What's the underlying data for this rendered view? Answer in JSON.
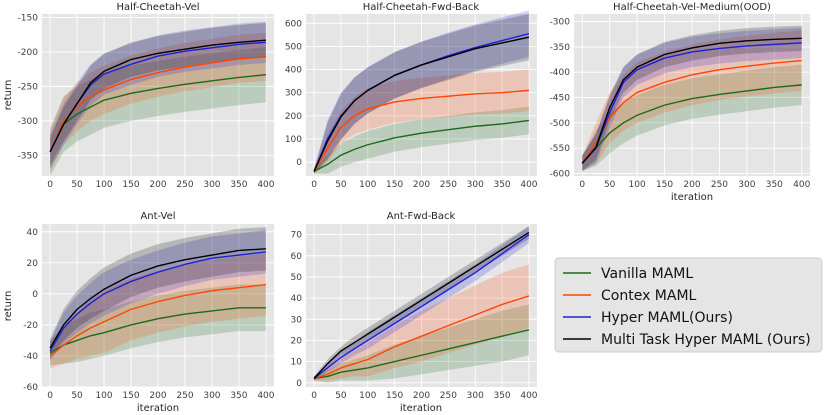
{
  "legend": {
    "entries": [
      {
        "name": "Vanilla MAML",
        "color": "#1a6b1a"
      },
      {
        "name": "Contex MAML",
        "color": "#ff4500"
      },
      {
        "name": "Hyper MAML(Ours)",
        "color": "#1f1fd6"
      },
      {
        "name": "Multi Task Hyper MAML (Ours)",
        "color": "#000000"
      }
    ]
  },
  "chart_data": [
    {
      "type": "line",
      "title": "Half-Cheetah-Vel",
      "xlabel": "",
      "ylabel": "return",
      "xlim": [
        -15,
        415
      ],
      "ylim": [
        -380,
        -145
      ],
      "xticks": [
        0,
        50,
        100,
        150,
        200,
        250,
        300,
        350,
        400
      ],
      "yticks": [
        -350,
        -300,
        -250,
        -200,
        -150
      ],
      "x": [
        0,
        25,
        50,
        75,
        100,
        150,
        200,
        250,
        300,
        350,
        400
      ],
      "series": [
        {
          "name": "Vanilla MAML",
          "color": "#1a6b1a",
          "values": [
            -345,
            -305,
            -290,
            -280,
            -270,
            -260,
            -253,
            -247,
            -242,
            -237,
            -233
          ],
          "band": [
            35,
            40,
            40,
            40,
            40,
            40,
            40,
            40,
            40,
            40,
            40
          ]
        },
        {
          "name": "Contex MAML",
          "color": "#ff4500",
          "values": [
            -345,
            -300,
            -280,
            -265,
            -255,
            -240,
            -230,
            -222,
            -216,
            -210,
            -207
          ],
          "band": [
            30,
            35,
            35,
            35,
            35,
            35,
            35,
            35,
            35,
            35,
            35
          ]
        },
        {
          "name": "Hyper MAML(Ours)",
          "color": "#1f1fd6",
          "values": [
            -345,
            -305,
            -275,
            -248,
            -232,
            -218,
            -206,
            -199,
            -194,
            -189,
            -186
          ],
          "band": [
            25,
            30,
            30,
            30,
            30,
            30,
            30,
            30,
            30,
            30,
            30
          ]
        },
        {
          "name": "Multi Task Hyper MAML (Ours)",
          "color": "#000000",
          "values": [
            -345,
            -305,
            -275,
            -245,
            -228,
            -211,
            -202,
            -196,
            -190,
            -186,
            -183
          ],
          "band": [
            20,
            25,
            25,
            25,
            25,
            25,
            25,
            25,
            25,
            25,
            25
          ]
        }
      ]
    },
    {
      "type": "line",
      "title": "Half-Cheetah-Fwd-Back",
      "xlabel": "",
      "ylabel": "",
      "xlim": [
        -15,
        415
      ],
      "ylim": [
        -60,
        640
      ],
      "xticks": [
        0,
        50,
        100,
        150,
        200,
        250,
        300,
        350,
        400
      ],
      "yticks": [
        0,
        100,
        200,
        300,
        400,
        500,
        600
      ],
      "x": [
        0,
        25,
        50,
        75,
        100,
        150,
        200,
        250,
        300,
        350,
        400
      ],
      "series": [
        {
          "name": "Vanilla MAML",
          "color": "#1a6b1a",
          "values": [
            -40,
            -10,
            30,
            55,
            75,
            105,
            125,
            140,
            155,
            165,
            180
          ],
          "band": [
            10,
            40,
            50,
            55,
            60,
            60,
            60,
            60,
            60,
            60,
            60
          ]
        },
        {
          "name": "Contex MAML",
          "color": "#ff4500",
          "values": [
            -40,
            60,
            150,
            200,
            230,
            260,
            275,
            285,
            295,
            300,
            310
          ],
          "band": [
            10,
            60,
            70,
            80,
            90,
            90,
            90,
            90,
            90,
            90,
            90
          ]
        },
        {
          "name": "Hyper MAML(Ours)",
          "color": "#1f1fd6",
          "values": [
            -40,
            100,
            200,
            265,
            310,
            375,
            420,
            460,
            495,
            525,
            555
          ],
          "band": [
            10,
            80,
            100,
            100,
            100,
            100,
            100,
            100,
            100,
            100,
            100
          ]
        },
        {
          "name": "Multi Task Hyper MAML (Ours)",
          "color": "#000000",
          "values": [
            -40,
            90,
            195,
            265,
            310,
            375,
            420,
            455,
            490,
            515,
            540
          ],
          "band": [
            10,
            80,
            100,
            100,
            100,
            100,
            100,
            100,
            100,
            100,
            100
          ]
        }
      ]
    },
    {
      "type": "line",
      "title": "Half-Cheetah-Vel-Medium(OOD)",
      "xlabel": "iteration",
      "ylabel": "",
      "xlim": [
        -15,
        415
      ],
      "ylim": [
        -605,
        -285
      ],
      "xticks": [
        0,
        50,
        100,
        150,
        200,
        250,
        300,
        350,
        400
      ],
      "yticks": [
        -600,
        -550,
        -500,
        -450,
        -400,
        -350,
        -300
      ],
      "x": [
        0,
        25,
        50,
        75,
        100,
        150,
        200,
        250,
        300,
        350,
        400
      ],
      "series": [
        {
          "name": "Vanilla MAML",
          "color": "#1a6b1a",
          "values": [
            -580,
            -550,
            -520,
            -500,
            -485,
            -465,
            -452,
            -444,
            -437,
            -430,
            -425
          ],
          "band": [
            15,
            35,
            40,
            40,
            40,
            40,
            40,
            40,
            40,
            40,
            40
          ]
        },
        {
          "name": "Contex MAML",
          "color": "#ff4500",
          "values": [
            -580,
            -540,
            -490,
            -460,
            -440,
            -420,
            -405,
            -395,
            -388,
            -382,
            -377
          ],
          "band": [
            15,
            40,
            50,
            55,
            60,
            60,
            60,
            60,
            60,
            60,
            60
          ]
        },
        {
          "name": "Hyper MAML(Ours)",
          "color": "#1f1fd6",
          "values": [
            -580,
            -550,
            -480,
            -420,
            -395,
            -372,
            -360,
            -353,
            -348,
            -345,
            -342
          ],
          "band": [
            15,
            30,
            30,
            30,
            30,
            30,
            30,
            30,
            30,
            30,
            30
          ]
        },
        {
          "name": "Multi Task Hyper MAML (Ours)",
          "color": "#000000",
          "values": [
            -580,
            -548,
            -470,
            -415,
            -390,
            -365,
            -352,
            -343,
            -338,
            -335,
            -333
          ],
          "band": [
            15,
            25,
            25,
            25,
            25,
            25,
            25,
            25,
            25,
            25,
            25
          ]
        }
      ]
    },
    {
      "type": "line",
      "title": "Ant-Vel",
      "xlabel": "iteration",
      "ylabel": "return",
      "xlim": [
        -15,
        415
      ],
      "ylim": [
        -60,
        45
      ],
      "xticks": [
        0,
        50,
        100,
        150,
        200,
        250,
        300,
        350,
        400
      ],
      "yticks": [
        -60,
        -40,
        -20,
        0,
        20,
        40
      ],
      "x": [
        0,
        25,
        50,
        75,
        100,
        150,
        200,
        250,
        300,
        350,
        400
      ],
      "series": [
        {
          "name": "Vanilla MAML",
          "color": "#1a6b1a",
          "values": [
            -38,
            -33,
            -30,
            -27,
            -25,
            -20,
            -16,
            -13,
            -11,
            -9,
            -9
          ],
          "band": [
            8,
            12,
            14,
            15,
            15,
            15,
            15,
            15,
            15,
            15,
            15
          ]
        },
        {
          "name": "Contex MAML",
          "color": "#ff4500",
          "values": [
            -40,
            -33,
            -27,
            -22,
            -18,
            -10,
            -5,
            -1,
            2,
            4,
            6
          ],
          "band": [
            8,
            12,
            15,
            18,
            20,
            20,
            20,
            20,
            20,
            20,
            20
          ]
        },
        {
          "name": "Hyper MAML(Ours)",
          "color": "#1f1fd6",
          "values": [
            -37,
            -22,
            -13,
            -6,
            0,
            8,
            14,
            19,
            23,
            25,
            27
          ],
          "band": [
            6,
            10,
            12,
            13,
            14,
            14,
            14,
            14,
            14,
            14,
            14
          ]
        },
        {
          "name": "Multi Task Hyper MAML (Ours)",
          "color": "#000000",
          "values": [
            -35,
            -20,
            -10,
            -3,
            3,
            12,
            18,
            22,
            25,
            28,
            29
          ],
          "band": [
            6,
            10,
            12,
            13,
            14,
            14,
            14,
            14,
            14,
            14,
            14
          ]
        }
      ]
    },
    {
      "type": "line",
      "title": "Ant-Fwd-Back",
      "xlabel": "iteration",
      "ylabel": "",
      "xlim": [
        -15,
        415
      ],
      "ylim": [
        -2,
        75
      ],
      "xticks": [
        0,
        50,
        100,
        150,
        200,
        250,
        300,
        350,
        400
      ],
      "yticks": [
        0,
        10,
        20,
        30,
        40,
        50,
        60,
        70
      ],
      "x": [
        0,
        25,
        50,
        75,
        100,
        150,
        200,
        250,
        300,
        350,
        400
      ],
      "series": [
        {
          "name": "Vanilla MAML",
          "color": "#1a6b1a",
          "values": [
            2,
            3,
            5,
            6,
            7,
            10,
            13,
            16,
            19,
            22,
            25
          ],
          "band": [
            1,
            3,
            4,
            5,
            6,
            8,
            9,
            10,
            11,
            12,
            12
          ]
        },
        {
          "name": "Contex MAML",
          "color": "#ff4500",
          "values": [
            2,
            4,
            7,
            9,
            11,
            17,
            22,
            27,
            32,
            37,
            41
          ],
          "band": [
            1,
            3,
            5,
            6,
            8,
            10,
            12,
            13,
            14,
            15,
            15
          ]
        },
        {
          "name": "Hyper MAML(Ours)",
          "color": "#1f1fd6",
          "values": [
            2,
            7,
            12,
            16,
            20,
            28,
            36,
            44,
            52,
            61,
            70
          ],
          "band": [
            1,
            2,
            3,
            3,
            4,
            4,
            4,
            4,
            4,
            4,
            4
          ]
        },
        {
          "name": "Multi Task Hyper MAML (Ours)",
          "color": "#000000",
          "values": [
            2,
            9,
            15,
            19,
            23,
            31,
            39,
            47,
            55,
            63,
            71
          ],
          "band": [
            1,
            2,
            2,
            3,
            3,
            3,
            3,
            3,
            3,
            3,
            3
          ]
        }
      ]
    }
  ]
}
